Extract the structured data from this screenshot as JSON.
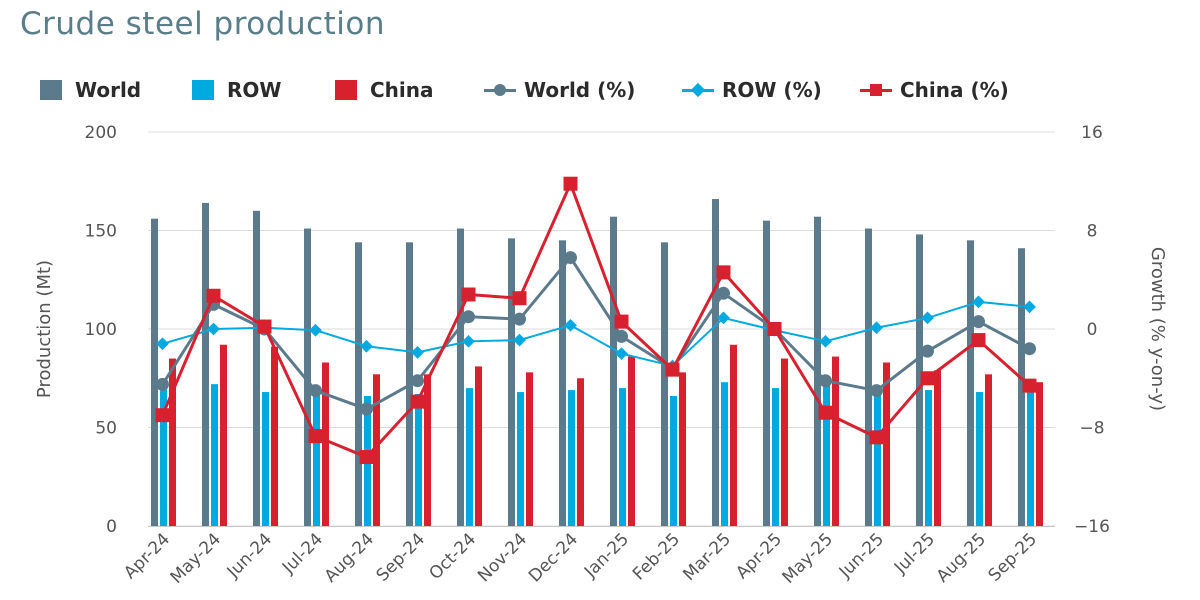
{
  "chart_data": {
    "type": "bar+line",
    "title": "Crude steel production",
    "categories": [
      "Apr-24",
      "May-24",
      "Jun-24",
      "Jul-24",
      "Aug-24",
      "Sep-24",
      "Oct-24",
      "Nov-24",
      "Dec-24",
      "Jan-25",
      "Feb-25",
      "Mar-25",
      "Apr-25",
      "May-25",
      "Jun-25",
      "Jul-25",
      "Aug-25",
      "Sep-25"
    ],
    "ylabel_left": "Production (Mt)",
    "ylabel_right": "Growth (% y-on-y)",
    "ylim_left": [
      0,
      200
    ],
    "yticks_left": [
      "0",
      "50",
      "100",
      "150",
      "200"
    ],
    "ylim_right": [
      -16,
      16
    ],
    "yticks_right": [
      "−16",
      "−8",
      "0",
      "8",
      "16"
    ],
    "bar_series": [
      {
        "name": "World",
        "color": "#5b7a8c",
        "values": [
          156,
          164,
          160,
          151,
          144,
          144,
          151,
          146,
          145,
          157,
          144,
          166,
          155,
          157,
          151,
          148,
          145,
          141
        ]
      },
      {
        "name": "ROW",
        "color": "#00a9e0",
        "values": [
          71,
          72,
          68,
          68,
          66,
          67,
          70,
          68,
          69,
          70,
          66,
          73,
          70,
          72,
          70,
          69,
          68,
          68
        ]
      },
      {
        "name": "China",
        "color": "#d7212f",
        "values": [
          85,
          92,
          91,
          83,
          77,
          77,
          81,
          78,
          75,
          86,
          78,
          92,
          85,
          86,
          83,
          79,
          77,
          73
        ]
      }
    ],
    "line_series": [
      {
        "name": "World (%)",
        "color": "#5b7a8c",
        "marker": "circle",
        "values": [
          -4.5,
          2.0,
          0.0,
          -5.0,
          -6.5,
          -4.2,
          1.0,
          0.8,
          5.8,
          -0.6,
          -3.2,
          2.9,
          0.0,
          -4.2,
          -5.0,
          -1.8,
          0.6,
          -1.6
        ]
      },
      {
        "name": "ROW (%)",
        "color": "#00a9e0",
        "marker": "diamond",
        "values": [
          -1.2,
          0.0,
          0.1,
          -0.1,
          -1.4,
          -1.9,
          -1.0,
          -0.9,
          0.3,
          -2.0,
          -3.0,
          0.9,
          -0.1,
          -1.0,
          0.1,
          0.9,
          2.2,
          1.8
        ]
      },
      {
        "name": "China (%)",
        "color": "#d7212f",
        "marker": "square",
        "values": [
          -7.0,
          2.7,
          0.2,
          -8.7,
          -10.4,
          -5.9,
          2.8,
          2.5,
          11.8,
          0.6,
          -3.3,
          4.6,
          0.0,
          -6.8,
          -8.8,
          -4.0,
          -0.9,
          -4.6
        ]
      }
    ],
    "legend_position": "top"
  }
}
